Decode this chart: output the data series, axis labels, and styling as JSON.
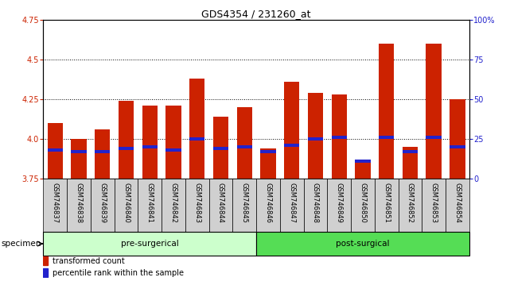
{
  "title": "GDS4354 / 231260_at",
  "samples": [
    "GSM746837",
    "GSM746838",
    "GSM746839",
    "GSM746840",
    "GSM746841",
    "GSM746842",
    "GSM746843",
    "GSM746844",
    "GSM746845",
    "GSM746846",
    "GSM746847",
    "GSM746848",
    "GSM746849",
    "GSM746850",
    "GSM746851",
    "GSM746852",
    "GSM746853",
    "GSM746854"
  ],
  "red_values": [
    4.1,
    4.0,
    4.06,
    4.24,
    4.21,
    4.21,
    4.38,
    4.14,
    4.2,
    3.94,
    4.36,
    4.29,
    4.28,
    3.85,
    4.6,
    3.95,
    4.6,
    4.25
  ],
  "blue_values": [
    3.93,
    3.92,
    3.92,
    3.94,
    3.95,
    3.93,
    4.0,
    3.94,
    3.95,
    3.92,
    3.96,
    4.0,
    4.01,
    3.86,
    4.01,
    3.92,
    4.01,
    3.95
  ],
  "y_min": 3.75,
  "y_max": 4.75,
  "y_ticks_left": [
    3.75,
    4.0,
    4.25,
    4.5,
    4.75
  ],
  "y_ticks_right": [
    0,
    25,
    50,
    75,
    100
  ],
  "bar_color": "#cc2200",
  "marker_color": "#2222cc",
  "tick_label_color_left": "#cc2200",
  "tick_label_color_right": "#2222cc",
  "bar_width": 0.65,
  "specimen_label": "specimen",
  "pre_surgical_label": "pre-surgerical",
  "post_surgical_label": "post-surgical",
  "pre_surgical_color": "#ccffcc",
  "post_surgical_color": "#55dd55",
  "label_box_color": "#d0d0d0",
  "legend_red": "transformed count",
  "legend_blue": "percentile rank within the sample",
  "title_fontsize": 9,
  "tick_fontsize": 7,
  "label_fontsize": 6,
  "group_fontsize": 7.5,
  "legend_fontsize": 7
}
